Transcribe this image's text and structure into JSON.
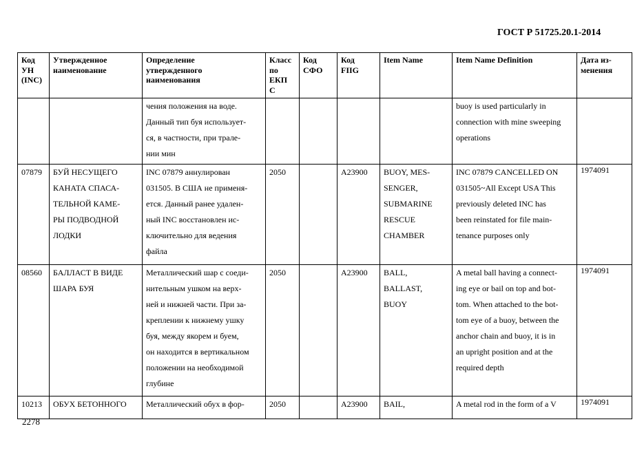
{
  "header": {
    "doc_title": "ГОСТ Р 51725.20.1-2014"
  },
  "table": {
    "columns": [
      "Код\nУН\n(INC)",
      "Утвержденное\nнаименование",
      "Определение\nутвержденного\nнаименования",
      "Класс\nпо\nЕКП\nС",
      "Код\nСФО",
      "Код\nFIIG",
      "Item Name",
      "Item Name Definition",
      "Дата из-\nменения"
    ],
    "rows": [
      [
        "",
        "",
        "чения положения на воде.\nДанный тип буя использует-\nся, в частности, при трале-\nнии мин",
        "",
        "",
        "",
        "",
        "buoy is used particularly in\nconnection with mine sweeping\noperations",
        ""
      ],
      [
        "07879",
        "БУЙ НЕСУЩЕГО\nКАНАТА СПАСА-\nТЕЛЬНОЙ КАМЕ-\nРЫ ПОДВОДНОЙ\nЛОДКИ",
        "INC 07879 аннулирован\n031505. В США не применя-\nется. Данный ранее удален-\nный INC восстановлен ис-\nключительно для ведения\nфайла",
        "2050",
        "",
        "A23900",
        "BUOY, MES-\nSENGER,\nSUBMARINE\nRESCUE\nCHAMBER",
        "INC 07879 CANCELLED ON\n031505~All Except USA This\npreviously deleted INC has\nbeen reinstated for file main-\ntenance purposes only",
        "1974091"
      ],
      [
        "08560",
        "БАЛЛАСТ В ВИДЕ\nШАРА БУЯ",
        "Металлический шар с соеди-\nнительным ушком на верх-\nней и нижней части. При за-\nкреплении к нижнему ушку\nбуя, между якорем и буем,\nон находится в вертикальном\nположении на необходимой\nглубине",
        "2050",
        "",
        "A23900",
        "BALL,\nBALLAST,\nBUOY",
        "A metal ball having a connect-\ning eye or bail on top and bot-\ntom. When attached to the bot-\ntom eye of a buoy, between the\nanchor chain and buoy, it is in\nan upright position and at the\nrequired depth",
        "1974091"
      ],
      [
        "10213",
        "ОБУХ БЕТОННОГО",
        "Металлический обух в фор-",
        "2050",
        "",
        "A23900",
        "BAIL,",
        "A metal rod in the form of a V",
        "1974091"
      ]
    ]
  },
  "footer": {
    "page_number": "2278"
  }
}
